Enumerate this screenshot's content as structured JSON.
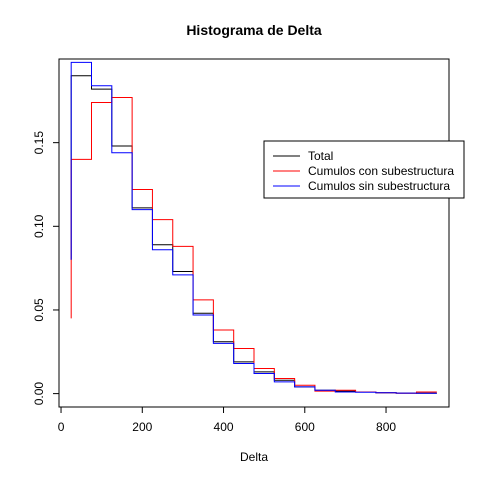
{
  "chart_data": {
    "type": "line",
    "title": "Histograma de Delta",
    "xlabel": "Delta",
    "ylabel": "",
    "xlim": [
      -5,
      955
    ],
    "ylim": [
      -0.008,
      0.2
    ],
    "x_ticks": [
      0,
      200,
      400,
      600,
      800
    ],
    "x_tick_labels": [
      "0",
      "200",
      "400",
      "600",
      "800"
    ],
    "y_ticks": [
      0,
      0.05,
      0.1,
      0.15
    ],
    "y_tick_labels": [
      "0.00",
      "0.05",
      "0.10",
      "0.15"
    ],
    "grid": false,
    "legend_position": "right",
    "bin_edges": [
      25,
      75,
      125,
      175,
      225,
      275,
      325,
      375,
      425,
      475,
      525,
      575,
      625,
      675,
      725,
      775,
      825,
      875,
      925
    ],
    "series": [
      {
        "name": "Total",
        "color": "#000000",
        "start_y": 0.08,
        "values": [
          0.19,
          0.182,
          0.148,
          0.111,
          0.089,
          0.073,
          0.048,
          0.031,
          0.019,
          0.013,
          0.008,
          0.004,
          0.002,
          0.0015,
          0.001,
          0.0005,
          0.0003,
          0.0002
        ]
      },
      {
        "name": "Cumulos con subestructura",
        "color": "#ff0000",
        "start_y": 0.045,
        "values": [
          0.14,
          0.174,
          0.177,
          0.122,
          0.104,
          0.088,
          0.056,
          0.038,
          0.027,
          0.015,
          0.009,
          0.005,
          0.0015,
          0.002,
          0.001,
          0.0005,
          0.0002,
          0.001
        ]
      },
      {
        "name": "Cumulos sin subestructura",
        "color": "#0000ff",
        "start_y": 0.08,
        "values": [
          0.198,
          0.184,
          0.144,
          0.11,
          0.086,
          0.071,
          0.047,
          0.03,
          0.018,
          0.012,
          0.007,
          0.004,
          0.002,
          0.001,
          0.0008,
          0.0005,
          0.0003,
          0.0002
        ]
      }
    ]
  }
}
